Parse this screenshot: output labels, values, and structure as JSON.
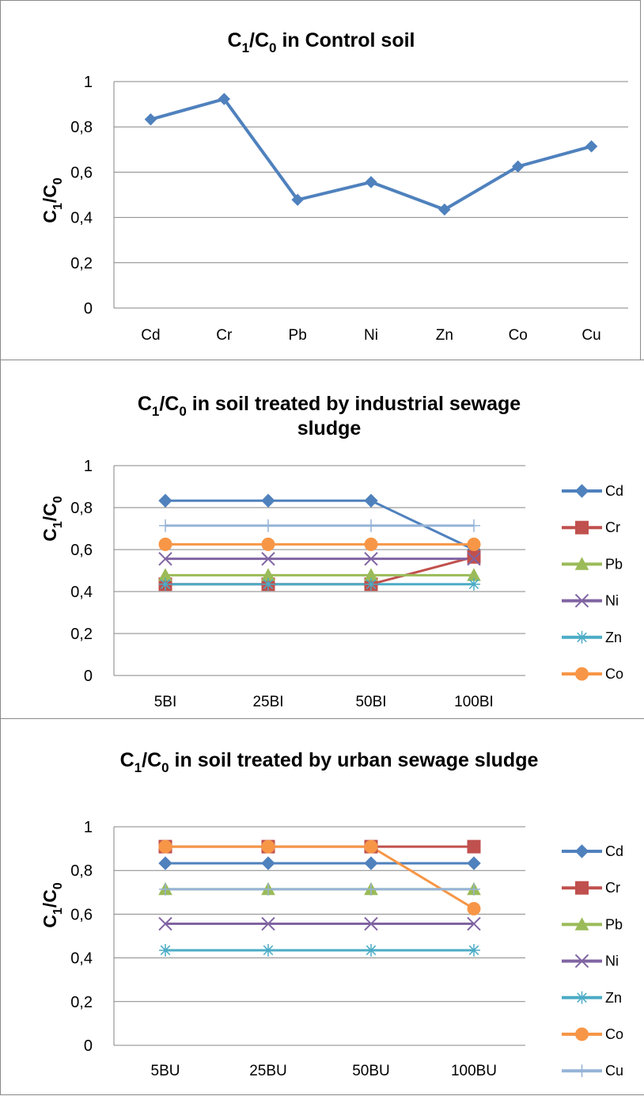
{
  "chart_data": [
    {
      "type": "line",
      "title": {
        "main": "C",
        "sub1": "1",
        "mid": "/C",
        "sub2": "0",
        "rest": " in  Control soil"
      },
      "ylabel": {
        "main": "C",
        "sub1": "1",
        "mid": "/C",
        "sub2": "0"
      },
      "categories": [
        "Cd",
        "Cr",
        "Pb",
        "Ni",
        "Zn",
        "Co",
        "Cu"
      ],
      "yticks": [
        "0",
        "0,2",
        "0,4",
        "0,6",
        "0,8",
        "1"
      ],
      "ylim": [
        0,
        1
      ],
      "grid": true,
      "legend": "none",
      "series": [
        {
          "values": [
            0.833,
            0.923,
            0.478,
            0.556,
            0.435,
            0.625,
            0.714
          ],
          "color": "#4f81bd",
          "marker": "diamond"
        }
      ]
    },
    {
      "type": "line",
      "title": {
        "main": "C",
        "sub1": "1",
        "mid": "/C",
        "sub2": "0",
        "rest": " in soil treated by  industrial sewage",
        "line2": "sludge"
      },
      "ylabel": {
        "main": "C",
        "sub1": "1",
        "mid": "/C",
        "sub2": "0"
      },
      "categories": [
        "5BI",
        "25BI",
        "50BI",
        "100BI"
      ],
      "yticks": [
        "0",
        "0,2",
        "0,4",
        "0,6",
        "0,8",
        "1"
      ],
      "ylim": [
        0,
        1
      ],
      "grid": true,
      "legend": "right",
      "series": [
        {
          "name": "Cd",
          "values": [
            0.833,
            0.833,
            0.833,
            0.6
          ],
          "color": "#4f81bd",
          "marker": "diamond"
        },
        {
          "name": "Cr",
          "values": [
            0.435,
            0.435,
            0.435,
            0.565
          ],
          "color": "#c0504d",
          "marker": "square"
        },
        {
          "name": "Pb",
          "values": [
            0.478,
            0.478,
            0.478,
            0.478
          ],
          "color": "#9bbb59",
          "marker": "triangle"
        },
        {
          "name": "Ni",
          "values": [
            0.556,
            0.556,
            0.556,
            0.556
          ],
          "color": "#8064a2",
          "marker": "x"
        },
        {
          "name": "Zn",
          "values": [
            0.435,
            0.435,
            0.435,
            0.435
          ],
          "color": "#4bacc6",
          "marker": "star"
        },
        {
          "name": "Co",
          "values": [
            0.625,
            0.625,
            0.625,
            0.625
          ],
          "color": "#f79646",
          "marker": "circle"
        },
        {
          "values": [
            0.714,
            0.714,
            0.714,
            0.714
          ],
          "color": "#95b3d7",
          "marker": "plus"
        }
      ]
    },
    {
      "type": "line",
      "title": {
        "main": "C",
        "sub1": "1",
        "mid": "/C",
        "sub2": "0",
        "rest": " in soil treated by urban sewage sludge"
      },
      "ylabel": {
        "main": "C",
        "sub1": "1",
        "mid": "/C",
        "sub2": "0"
      },
      "categories": [
        "5BU",
        "25BU",
        "50BU",
        "100BU"
      ],
      "yticks": [
        "0",
        "0,2",
        "0,4",
        "0,6",
        "0,8",
        "1"
      ],
      "ylim": [
        0,
        1
      ],
      "grid": true,
      "legend": "right",
      "series": [
        {
          "name": "Cd",
          "values": [
            0.833,
            0.833,
            0.833,
            0.833
          ],
          "color": "#4f81bd",
          "marker": "diamond"
        },
        {
          "name": "Cr",
          "values": [
            0.909,
            0.909,
            0.909,
            0.909
          ],
          "color": "#c0504d",
          "marker": "square"
        },
        {
          "name": "Pb",
          "values": [
            0.714,
            0.714,
            0.714,
            0.714
          ],
          "color": "#9bbb59",
          "marker": "triangle"
        },
        {
          "name": "Ni",
          "values": [
            0.556,
            0.556,
            0.556,
            0.556
          ],
          "color": "#8064a2",
          "marker": "x"
        },
        {
          "name": "Zn",
          "values": [
            0.435,
            0.435,
            0.435,
            0.435
          ],
          "color": "#4bacc6",
          "marker": "star"
        },
        {
          "name": "Co",
          "values": [
            0.909,
            0.909,
            0.909,
            0.625
          ],
          "color": "#f79646",
          "marker": "circle"
        },
        {
          "name": "Cu",
          "values": [
            0.714,
            0.714,
            0.714,
            0.714
          ],
          "color": "#95b3d7",
          "marker": "plus"
        }
      ]
    }
  ]
}
